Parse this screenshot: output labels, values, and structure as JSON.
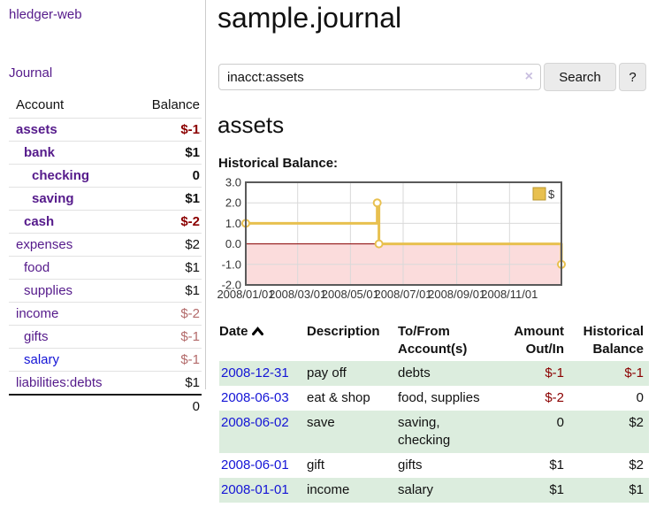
{
  "app": {
    "brand": "hledger-web",
    "nav_journal": "Journal"
  },
  "header": {
    "title": "sample.journal"
  },
  "search": {
    "value": "inacct:assets",
    "clear_icon": "×",
    "button": "Search",
    "help_button": "?"
  },
  "account_page": {
    "title": "assets",
    "chart_label": "Historical Balance:"
  },
  "sidebar": {
    "header": {
      "account": "Account",
      "balance": "Balance"
    },
    "accounts": [
      {
        "label": "assets",
        "level": 1,
        "matched": true,
        "balance": "$-1",
        "balance_tone": "neg-strong",
        "link_tone": "purple"
      },
      {
        "label": "bank",
        "level": 2,
        "matched": true,
        "balance": "$1",
        "balance_tone": "pos-strong",
        "link_tone": "purple"
      },
      {
        "label": "checking",
        "level": 3,
        "matched": true,
        "balance": "0",
        "balance_tone": "pos-strong",
        "link_tone": "purple"
      },
      {
        "label": "saving",
        "level": 3,
        "matched": true,
        "balance": "$1",
        "balance_tone": "pos-strong",
        "link_tone": "purple"
      },
      {
        "label": "cash",
        "level": 2,
        "matched": true,
        "balance": "$-2",
        "balance_tone": "neg-strong",
        "link_tone": "purple"
      },
      {
        "label": "expenses",
        "level": 1,
        "matched": false,
        "balance": "$2",
        "balance_tone": "pos",
        "link_tone": "purple"
      },
      {
        "label": "food",
        "level": 2,
        "matched": false,
        "balance": "$1",
        "balance_tone": "pos",
        "link_tone": "purple"
      },
      {
        "label": "supplies",
        "level": 2,
        "matched": false,
        "balance": "$1",
        "balance_tone": "pos",
        "link_tone": "purple"
      },
      {
        "label": "income",
        "level": 1,
        "matched": false,
        "balance": "$-2",
        "balance_tone": "neg",
        "link_tone": "purple"
      },
      {
        "label": "gifts",
        "level": 2,
        "matched": false,
        "balance": "$-1",
        "balance_tone": "neg",
        "link_tone": "purple"
      },
      {
        "label": "salary",
        "level": 2,
        "matched": false,
        "balance": "$-1",
        "balance_tone": "neg",
        "link_tone": "blue"
      },
      {
        "label": "liabilities:debts",
        "level": 1,
        "matched": false,
        "balance": "$1",
        "balance_tone": "pos",
        "link_tone": "purple"
      }
    ],
    "total": "0"
  },
  "chart_data": {
    "type": "line",
    "step": true,
    "title": "Historical Balance",
    "series": [
      {
        "name": "$",
        "color": "#e8c04f",
        "points": [
          {
            "day": 0,
            "value": 1
          },
          {
            "day": 152,
            "value": 2
          },
          {
            "day": 154,
            "value": 0
          },
          {
            "day": 365,
            "value": -1
          }
        ]
      }
    ],
    "x_ticks": [
      {
        "day": 0,
        "label": "2008/01/01"
      },
      {
        "day": 60,
        "label": "2008/03/01"
      },
      {
        "day": 121,
        "label": "2008/05/01"
      },
      {
        "day": 182,
        "label": "2008/07/01"
      },
      {
        "day": 244,
        "label": "2008/09/01"
      },
      {
        "day": 305,
        "label": "2008/11/01"
      }
    ],
    "y_ticks": [
      {
        "value": 3,
        "label": "3.0"
      },
      {
        "value": 2,
        "label": "2.0"
      },
      {
        "value": 1,
        "label": "1.0"
      },
      {
        "value": 0,
        "label": "0.0"
      },
      {
        "value": -1,
        "label": "-1.0"
      },
      {
        "value": -2,
        "label": "-2.0"
      }
    ],
    "xlim_days": [
      0,
      365
    ],
    "ylim": [
      -2,
      3
    ],
    "grid": true,
    "legend": {
      "label": "$",
      "position": "top-right"
    },
    "colors": {
      "negative_region_fill": "#fbdcdc",
      "zero_line": "#8b0000",
      "gridline": "#d9d9d9",
      "border": "#5a5a5a",
      "marker_fill": "#ffffff",
      "legend_swatch_border": "#b8962e",
      "tick_text": "#333333"
    }
  },
  "register": {
    "columns": {
      "date": "Date",
      "description": "Description",
      "accounts": "To/From Account(s)",
      "amount": "Amount Out/In",
      "balance": "Historical Balance"
    },
    "rows": [
      {
        "date": "2008-12-31",
        "description": "pay off",
        "accounts": "debts",
        "amount": "$-1",
        "amount_tone": "neg",
        "balance": "$-1",
        "balance_tone": "neg",
        "shaded": true
      },
      {
        "date": "2008-06-03",
        "description": "eat & shop",
        "accounts": "food, supplies",
        "amount": "$-2",
        "amount_tone": "neg",
        "balance": "0",
        "balance_tone": "pos",
        "shaded": false
      },
      {
        "date": "2008-06-02",
        "description": "save",
        "accounts": "saving, checking",
        "amount": "0",
        "amount_tone": "pos",
        "balance": "$2",
        "balance_tone": "pos",
        "shaded": true
      },
      {
        "date": "2008-06-01",
        "description": "gift",
        "accounts": "gifts",
        "amount": "$1",
        "amount_tone": "pos",
        "balance": "$2",
        "balance_tone": "pos",
        "shaded": false
      },
      {
        "date": "2008-01-01",
        "description": "income",
        "accounts": "salary",
        "amount": "$1",
        "amount_tone": "pos",
        "balance": "$1",
        "balance_tone": "pos",
        "shaded": true
      }
    ]
  },
  "colors": {
    "link_purple": "#551a8b",
    "link_blue": "#1414d6",
    "negative_strong": "#8b0000",
    "negative_muted": "#b36a6a",
    "row_shade_green": "#dcedde",
    "sidebar_divider": "#cccccc"
  }
}
